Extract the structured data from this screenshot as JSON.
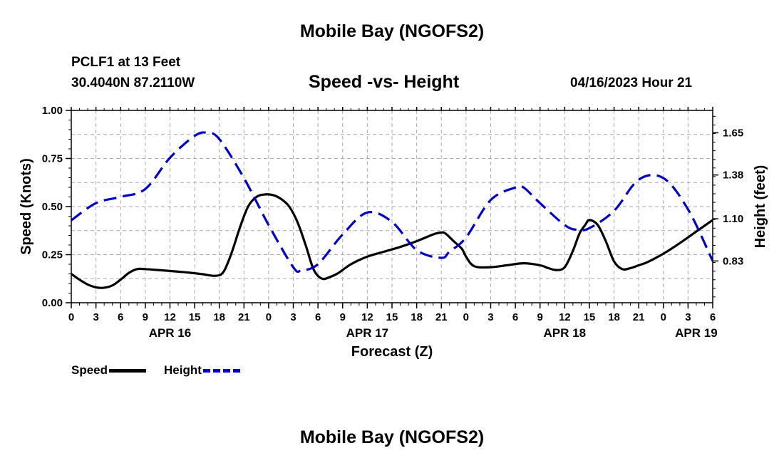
{
  "header": {
    "title": "Mobile Bay (NGOFS2)",
    "station": "PCLF1 at 13 Feet",
    "coords": "30.4040N  87.2110W",
    "subtitle": "Speed -vs- Height",
    "datetime": "04/16/2023 Hour 21"
  },
  "footer": {
    "title": "Mobile Bay (NGOFS2)"
  },
  "legend": {
    "speed": "Speed",
    "height": "Height"
  },
  "chart_data": {
    "type": "line",
    "title": "Speed -vs- Height",
    "xlabel": "Forecast (Z)",
    "ylabel_left": "Speed (Knots)",
    "ylabel_right": "Height (feet)",
    "xlim": [
      0,
      78
    ],
    "ylim_left": [
      0,
      1
    ],
    "ylim_right": [
      0.563,
      1.793
    ],
    "grid": true,
    "legend_position": "bottom-left",
    "x_ticks": [
      0,
      3,
      6,
      9,
      12,
      15,
      18,
      21,
      24,
      27,
      30,
      33,
      36,
      39,
      42,
      45,
      48,
      51,
      54,
      57,
      60,
      63,
      66,
      69,
      72,
      75,
      78
    ],
    "x_tick_labels": [
      "0",
      "3",
      "6",
      "9",
      "12",
      "15",
      "18",
      "21",
      "0",
      "3",
      "6",
      "9",
      "12",
      "15",
      "18",
      "21",
      "0",
      "3",
      "6",
      "9",
      "12",
      "15",
      "18",
      "21",
      "0",
      "3",
      "6"
    ],
    "day_labels": [
      {
        "x": 12,
        "label": "APR 16"
      },
      {
        "x": 36,
        "label": "APR 17"
      },
      {
        "x": 60,
        "label": "APR 18"
      },
      {
        "x": 76,
        "label": "APR 19"
      }
    ],
    "left_ticks": [
      {
        "value": 0,
        "label": "0.00"
      },
      {
        "value": 0.25,
        "label": "0.25"
      },
      {
        "value": 0.5,
        "label": "0.50"
      },
      {
        "value": 0.75,
        "label": "0.75"
      },
      {
        "value": 1.0,
        "label": "1.00"
      }
    ],
    "right_ticks": [
      {
        "value": 0.83,
        "label": "0.83"
      },
      {
        "value": 1.1,
        "label": "1.10"
      },
      {
        "value": 1.38,
        "label": "1.38"
      },
      {
        "value": 1.65,
        "label": "1.65"
      }
    ],
    "series": [
      {
        "name": "Speed",
        "axis": "left",
        "color": "#000000",
        "style": "solid",
        "x": [
          0,
          1,
          2,
          3,
          4,
          5,
          6,
          7,
          8,
          9,
          10,
          12,
          14,
          16,
          17.5,
          18.5,
          19.5,
          20.5,
          21.5,
          22.5,
          23.5,
          24.5,
          25.5,
          26.5,
          27.5,
          28.5,
          29.5,
          30.5,
          31.5,
          32.5,
          34,
          36,
          38,
          40,
          42,
          44,
          45,
          45.5,
          46.5,
          47.5,
          48,
          49,
          51,
          53,
          55,
          57,
          58,
          59,
          60,
          61,
          61.8,
          62.5,
          63,
          64,
          65,
          66,
          67,
          68,
          69,
          70,
          72,
          74,
          76,
          78
        ],
        "y": [
          0.15,
          0.12,
          0.095,
          0.08,
          0.078,
          0.09,
          0.12,
          0.155,
          0.175,
          0.175,
          0.172,
          0.165,
          0.158,
          0.148,
          0.14,
          0.16,
          0.26,
          0.39,
          0.5,
          0.55,
          0.563,
          0.56,
          0.54,
          0.5,
          0.42,
          0.3,
          0.17,
          0.125,
          0.135,
          0.155,
          0.2,
          0.24,
          0.265,
          0.29,
          0.32,
          0.355,
          0.365,
          0.36,
          0.32,
          0.28,
          0.24,
          0.19,
          0.185,
          0.195,
          0.205,
          0.195,
          0.18,
          0.17,
          0.185,
          0.27,
          0.36,
          0.405,
          0.43,
          0.405,
          0.32,
          0.215,
          0.175,
          0.18,
          0.195,
          0.21,
          0.255,
          0.31,
          0.37,
          0.43
        ]
      },
      {
        "name": "Height",
        "axis": "right",
        "color": "#0000cc",
        "style": "dashed",
        "x": [
          0,
          3,
          6,
          9,
          12,
          15,
          16.5,
          18,
          21,
          24,
          27,
          28,
          30,
          33,
          36,
          39,
          42,
          45,
          46,
          48,
          51,
          54,
          55,
          57,
          60,
          61.5,
          63,
          66,
          69,
          72,
          75,
          78
        ],
        "y": [
          1.09,
          1.2,
          1.24,
          1.29,
          1.49,
          1.63,
          1.65,
          1.61,
          1.36,
          1.06,
          0.79,
          0.77,
          0.81,
          1.0,
          1.14,
          1.08,
          0.9,
          0.85,
          0.89,
          0.98,
          1.22,
          1.3,
          1.3,
          1.2,
          1.06,
          1.03,
          1.04,
          1.15,
          1.35,
          1.36,
          1.16,
          0.83
        ]
      }
    ]
  }
}
